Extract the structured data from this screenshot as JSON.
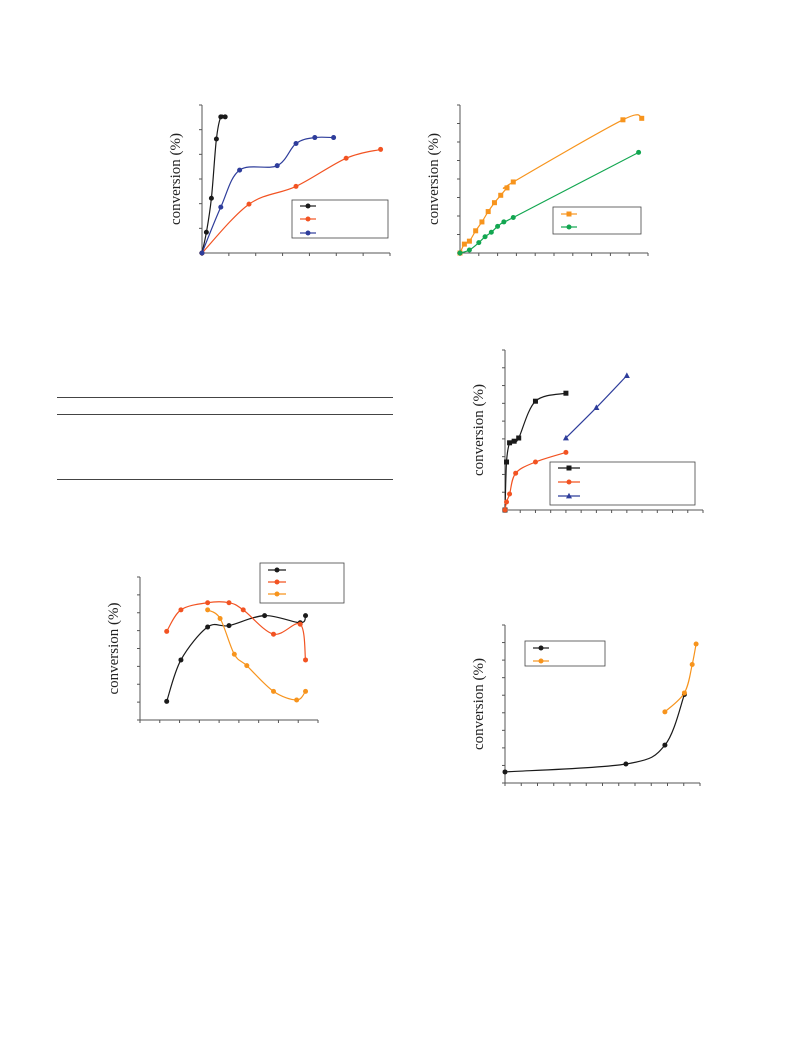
{
  "colors": {
    "black": "#1a1a1a",
    "red": "#f25322",
    "blue": "#2e3d9b",
    "orange": "#f7941d",
    "green": "#12a650",
    "axis": "#555555"
  },
  "chart_data": [
    {
      "type": "line",
      "ylabel": "conversion (%)",
      "xlabel": "",
      "legend": "bottom-right",
      "xlim": [
        0,
        30
      ],
      "ylim": [
        0,
        100
      ],
      "series": [
        {
          "color": "black",
          "marker": "circle",
          "x": [
            0,
            0.7,
            1.5,
            2.3,
            3.0,
            3.7
          ],
          "y": [
            0,
            14,
            37,
            77,
            92,
            92
          ]
        },
        {
          "color": "red",
          "marker": "circle",
          "x": [
            0,
            7.5,
            15,
            23,
            28.5
          ],
          "y": [
            0,
            33,
            45,
            64,
            70
          ]
        },
        {
          "color": "blue",
          "marker": "circle",
          "x": [
            0,
            3.0,
            6.0,
            12,
            15,
            18,
            21
          ],
          "y": [
            0,
            31,
            56,
            59,
            74,
            78,
            78
          ]
        }
      ]
    },
    {
      "type": "line",
      "ylabel": "conversion (%)",
      "xlabel": "",
      "legend": "bottom-right",
      "xlim": [
        0,
        30
      ],
      "ylim": [
        0,
        100
      ],
      "series": [
        {
          "color": "orange",
          "marker": "square",
          "x": [
            0,
            0.7,
            1.5,
            2.5,
            3.5,
            4.5,
            5.5,
            6.5,
            7.5,
            8.5,
            26,
            29
          ],
          "y": [
            0,
            6,
            8,
            15,
            21,
            28,
            34,
            39,
            44,
            48,
            90,
            91
          ]
        },
        {
          "color": "green",
          "marker": "circle",
          "x": [
            0,
            1.5,
            3.0,
            4.0,
            5.0,
            6.0,
            7.0,
            8.5,
            28.5
          ],
          "y": [
            0,
            2,
            7,
            11,
            14,
            18,
            21,
            24,
            68
          ]
        }
      ]
    },
    {
      "type": "line",
      "ylabel": "conversion (%)",
      "xlabel": "",
      "legend": "bottom-right",
      "xlim": [
        0,
        65
      ],
      "ylim": [
        0,
        100
      ],
      "series": [
        {
          "color": "black",
          "marker": "square",
          "x": [
            0,
            0.5,
            1.5,
            3,
            4.5,
            10,
            20
          ],
          "y": [
            0,
            30,
            42,
            43,
            45,
            68,
            73
          ]
        },
        {
          "color": "red",
          "marker": "circle",
          "x": [
            0,
            0.5,
            1.5,
            3.5,
            10,
            20
          ],
          "y": [
            0,
            5,
            10,
            23,
            30,
            36
          ]
        },
        {
          "color": "blue",
          "marker": "triangle",
          "x": [
            20,
            30,
            40
          ],
          "y": [
            45,
            64,
            84
          ]
        }
      ]
    },
    {
      "type": "line",
      "ylabel": "conversion (%)",
      "xlabel": "",
      "legend": "top-right",
      "xlim": [
        0,
        100
      ],
      "ylim": [
        0,
        100
      ],
      "series": [
        {
          "color": "black",
          "marker": "circle",
          "x": [
            15,
            23,
            38,
            50,
            70,
            90,
            93
          ],
          "y": [
            13,
            42,
            65,
            66,
            73,
            68,
            73
          ]
        },
        {
          "color": "red",
          "marker": "circle",
          "x": [
            15,
            23,
            38,
            50,
            58,
            75,
            90,
            93
          ],
          "y": [
            62,
            77,
            82,
            82,
            77,
            60,
            67,
            42
          ]
        },
        {
          "color": "orange",
          "marker": "circle",
          "x": [
            38,
            45,
            53,
            60,
            75,
            88,
            93
          ],
          "y": [
            77,
            71,
            46,
            38,
            20,
            14,
            20
          ]
        }
      ]
    },
    {
      "type": "line",
      "ylabel": "conversion (%)",
      "xlabel": "",
      "legend": "top-left",
      "xlim": [
        0,
        100
      ],
      "ylim": [
        0,
        100
      ],
      "series": [
        {
          "color": "black",
          "marker": "circle",
          "x": [
            0,
            62,
            82,
            92
          ],
          "y": [
            7,
            12,
            24,
            56
          ]
        },
        {
          "color": "orange",
          "marker": "circle",
          "x": [
            82,
            92,
            96,
            98
          ],
          "y": [
            45,
            57,
            75,
            88
          ]
        }
      ]
    }
  ]
}
